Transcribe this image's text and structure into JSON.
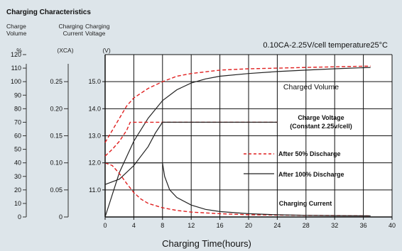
{
  "chart_data": {
    "type": "line",
    "title": "Charging Characteristics",
    "condition": "0.10CA-2.25V/cell  temperature25°C",
    "axis_headers": {
      "volume": [
        "Charge",
        "Volume"
      ],
      "current": [
        "Charging",
        "Current"
      ],
      "voltage": [
        "Charging",
        "Voltage"
      ]
    },
    "axis_units": {
      "volume": "%",
      "current": "(XCA)",
      "voltage": "(V)"
    },
    "x_axis": {
      "label": "Charging Time(hours)",
      "range": [
        0,
        40
      ],
      "ticks": [
        "0",
        "4",
        "8",
        "12",
        "16",
        "20",
        "24",
        "28",
        "32",
        "36",
        "40"
      ]
    },
    "y_voltage": {
      "range": [
        10,
        16
      ],
      "ticks": [
        {
          "v": 11.0,
          "t": "11.0"
        },
        {
          "v": 12.0,
          "t": "12.0"
        },
        {
          "v": 13.0,
          "t": "13.0"
        },
        {
          "v": 14.0,
          "t": "14.0"
        },
        {
          "v": 15.0,
          "t": "15.0"
        }
      ]
    },
    "y_current": {
      "range": [
        0,
        0.3
      ],
      "ticks": [
        {
          "v": 0,
          "t": "0"
        },
        {
          "v": 0.05,
          "t": "0.05"
        },
        {
          "v": 0.1,
          "t": "0.10"
        },
        {
          "v": 0.15,
          "t": "0.15"
        },
        {
          "v": 0.2,
          "t": "0.20"
        },
        {
          "v": 0.25,
          "t": "0.25"
        }
      ]
    },
    "y_volume": {
      "range": [
        0,
        120
      ],
      "ticks": [
        {
          "v": 0,
          "t": "0"
        },
        {
          "v": 10,
          "t": "10"
        },
        {
          "v": 20,
          "t": "20"
        },
        {
          "v": 30,
          "t": "30"
        },
        {
          "v": 40,
          "t": "40"
        },
        {
          "v": 50,
          "t": "50"
        },
        {
          "v": 60,
          "t": "60"
        },
        {
          "v": 70,
          "t": "70"
        },
        {
          "v": 80,
          "t": "80"
        },
        {
          "v": 90,
          "t": "90"
        },
        {
          "v": 100,
          "t": "100"
        },
        {
          "v": 110,
          "t": "110"
        },
        {
          "v": 120,
          "t": "120"
        }
      ]
    },
    "grid": true,
    "legend": [
      {
        "label": "After 50% Discharge",
        "style": "dashed",
        "color": "#e02020"
      },
      {
        "label": "After 100% Discharge",
        "style": "solid",
        "color": "#222222"
      }
    ],
    "annotations": [
      "Charged Volume",
      "Charge Voltage",
      "(Constant 2.25v/cell)",
      "Charging Current"
    ],
    "series": [
      {
        "name": "After 50% Discharge",
        "quantity": "volume",
        "dashed": true,
        "color": "#e02020",
        "x": [
          0,
          1,
          2,
          3,
          4,
          6,
          8,
          10,
          12,
          16,
          20,
          24,
          28,
          32,
          37
        ],
        "y": [
          55,
          64,
          73,
          82,
          88,
          95,
          100,
          104,
          106,
          108.5,
          109.5,
          110,
          110.5,
          111,
          111.5
        ]
      },
      {
        "name": "After 100% Discharge",
        "quantity": "volume",
        "dashed": false,
        "color": "#222222",
        "x": [
          0,
          2,
          4,
          6,
          8,
          10,
          12,
          14,
          16,
          20,
          24,
          28,
          32,
          37
        ],
        "y": [
          0,
          33,
          56,
          73,
          86,
          94,
          99,
          102,
          104,
          106,
          107.5,
          108.5,
          109.5,
          110.5
        ]
      },
      {
        "name": "After 50% Discharge",
        "quantity": "voltage",
        "dashed": true,
        "color": "#e02020",
        "x": [
          0,
          1,
          2,
          3,
          3.5,
          4,
          24
        ],
        "y": [
          12.25,
          12.5,
          12.8,
          13.2,
          13.5,
          13.5,
          13.5
        ]
      },
      {
        "name": "After 100% Discharge",
        "quantity": "voltage",
        "dashed": false,
        "color": "#222222",
        "x": [
          0,
          2,
          4,
          6,
          7,
          8,
          24
        ],
        "y": [
          11.2,
          11.4,
          11.9,
          12.6,
          13.1,
          13.5,
          13.5
        ]
      },
      {
        "name": "After 50% Discharge",
        "quantity": "current",
        "dashed": true,
        "color": "#e02020",
        "x": [
          0,
          1,
          2,
          3,
          4,
          5,
          6,
          8,
          10,
          12,
          16,
          20,
          28,
          37
        ],
        "y": [
          0.1,
          0.095,
          0.08,
          0.062,
          0.045,
          0.033,
          0.025,
          0.017,
          0.012,
          0.009,
          0.006,
          0.004,
          0.003,
          0.002
        ]
      },
      {
        "name": "After 100% Discharge",
        "quantity": "current",
        "dashed": false,
        "color": "#222222",
        "x": [
          0,
          8,
          8.3,
          9,
          10,
          12,
          14,
          16,
          20,
          24,
          28,
          32,
          37
        ],
        "y": [
          0.1,
          0.1,
          0.075,
          0.05,
          0.036,
          0.022,
          0.014,
          0.01,
          0.006,
          0.004,
          0.003,
          0.0025,
          0.002
        ]
      }
    ]
  }
}
